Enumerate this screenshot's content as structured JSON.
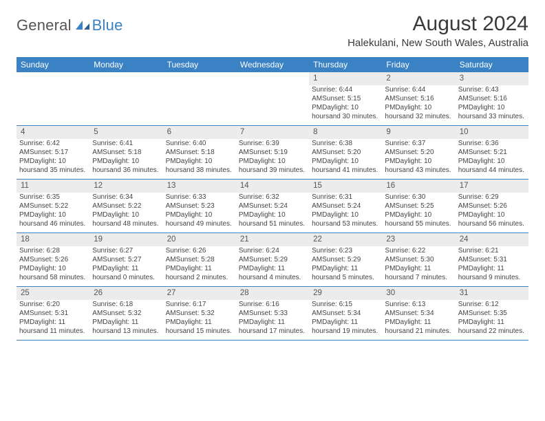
{
  "brand": {
    "name1": "General",
    "name2": "Blue"
  },
  "title": "August 2024",
  "subtitle": "Halekulani, New South Wales, Australia",
  "header_bg": "#3b82c4",
  "header_fg": "#ffffff",
  "daynum_bg": "#ececec",
  "row_border": "#3b82c4",
  "weekdays": [
    "Sunday",
    "Monday",
    "Tuesday",
    "Wednesday",
    "Thursday",
    "Friday",
    "Saturday"
  ],
  "weeks": [
    [
      null,
      null,
      null,
      null,
      {
        "n": "1",
        "sr": "Sunrise: 6:44 AM",
        "ss": "Sunset: 5:15 PM",
        "d1": "Daylight: 10 hours",
        "d2": "and 30 minutes."
      },
      {
        "n": "2",
        "sr": "Sunrise: 6:44 AM",
        "ss": "Sunset: 5:16 PM",
        "d1": "Daylight: 10 hours",
        "d2": "and 32 minutes."
      },
      {
        "n": "3",
        "sr": "Sunrise: 6:43 AM",
        "ss": "Sunset: 5:16 PM",
        "d1": "Daylight: 10 hours",
        "d2": "and 33 minutes."
      }
    ],
    [
      {
        "n": "4",
        "sr": "Sunrise: 6:42 AM",
        "ss": "Sunset: 5:17 PM",
        "d1": "Daylight: 10 hours",
        "d2": "and 35 minutes."
      },
      {
        "n": "5",
        "sr": "Sunrise: 6:41 AM",
        "ss": "Sunset: 5:18 PM",
        "d1": "Daylight: 10 hours",
        "d2": "and 36 minutes."
      },
      {
        "n": "6",
        "sr": "Sunrise: 6:40 AM",
        "ss": "Sunset: 5:18 PM",
        "d1": "Daylight: 10 hours",
        "d2": "and 38 minutes."
      },
      {
        "n": "7",
        "sr": "Sunrise: 6:39 AM",
        "ss": "Sunset: 5:19 PM",
        "d1": "Daylight: 10 hours",
        "d2": "and 39 minutes."
      },
      {
        "n": "8",
        "sr": "Sunrise: 6:38 AM",
        "ss": "Sunset: 5:20 PM",
        "d1": "Daylight: 10 hours",
        "d2": "and 41 minutes."
      },
      {
        "n": "9",
        "sr": "Sunrise: 6:37 AM",
        "ss": "Sunset: 5:20 PM",
        "d1": "Daylight: 10 hours",
        "d2": "and 43 minutes."
      },
      {
        "n": "10",
        "sr": "Sunrise: 6:36 AM",
        "ss": "Sunset: 5:21 PM",
        "d1": "Daylight: 10 hours",
        "d2": "and 44 minutes."
      }
    ],
    [
      {
        "n": "11",
        "sr": "Sunrise: 6:35 AM",
        "ss": "Sunset: 5:22 PM",
        "d1": "Daylight: 10 hours",
        "d2": "and 46 minutes."
      },
      {
        "n": "12",
        "sr": "Sunrise: 6:34 AM",
        "ss": "Sunset: 5:22 PM",
        "d1": "Daylight: 10 hours",
        "d2": "and 48 minutes."
      },
      {
        "n": "13",
        "sr": "Sunrise: 6:33 AM",
        "ss": "Sunset: 5:23 PM",
        "d1": "Daylight: 10 hours",
        "d2": "and 49 minutes."
      },
      {
        "n": "14",
        "sr": "Sunrise: 6:32 AM",
        "ss": "Sunset: 5:24 PM",
        "d1": "Daylight: 10 hours",
        "d2": "and 51 minutes."
      },
      {
        "n": "15",
        "sr": "Sunrise: 6:31 AM",
        "ss": "Sunset: 5:24 PM",
        "d1": "Daylight: 10 hours",
        "d2": "and 53 minutes."
      },
      {
        "n": "16",
        "sr": "Sunrise: 6:30 AM",
        "ss": "Sunset: 5:25 PM",
        "d1": "Daylight: 10 hours",
        "d2": "and 55 minutes."
      },
      {
        "n": "17",
        "sr": "Sunrise: 6:29 AM",
        "ss": "Sunset: 5:26 PM",
        "d1": "Daylight: 10 hours",
        "d2": "and 56 minutes."
      }
    ],
    [
      {
        "n": "18",
        "sr": "Sunrise: 6:28 AM",
        "ss": "Sunset: 5:26 PM",
        "d1": "Daylight: 10 hours",
        "d2": "and 58 minutes."
      },
      {
        "n": "19",
        "sr": "Sunrise: 6:27 AM",
        "ss": "Sunset: 5:27 PM",
        "d1": "Daylight: 11 hours",
        "d2": "and 0 minutes."
      },
      {
        "n": "20",
        "sr": "Sunrise: 6:26 AM",
        "ss": "Sunset: 5:28 PM",
        "d1": "Daylight: 11 hours",
        "d2": "and 2 minutes."
      },
      {
        "n": "21",
        "sr": "Sunrise: 6:24 AM",
        "ss": "Sunset: 5:29 PM",
        "d1": "Daylight: 11 hours",
        "d2": "and 4 minutes."
      },
      {
        "n": "22",
        "sr": "Sunrise: 6:23 AM",
        "ss": "Sunset: 5:29 PM",
        "d1": "Daylight: 11 hours",
        "d2": "and 5 minutes."
      },
      {
        "n": "23",
        "sr": "Sunrise: 6:22 AM",
        "ss": "Sunset: 5:30 PM",
        "d1": "Daylight: 11 hours",
        "d2": "and 7 minutes."
      },
      {
        "n": "24",
        "sr": "Sunrise: 6:21 AM",
        "ss": "Sunset: 5:31 PM",
        "d1": "Daylight: 11 hours",
        "d2": "and 9 minutes."
      }
    ],
    [
      {
        "n": "25",
        "sr": "Sunrise: 6:20 AM",
        "ss": "Sunset: 5:31 PM",
        "d1": "Daylight: 11 hours",
        "d2": "and 11 minutes."
      },
      {
        "n": "26",
        "sr": "Sunrise: 6:18 AM",
        "ss": "Sunset: 5:32 PM",
        "d1": "Daylight: 11 hours",
        "d2": "and 13 minutes."
      },
      {
        "n": "27",
        "sr": "Sunrise: 6:17 AM",
        "ss": "Sunset: 5:32 PM",
        "d1": "Daylight: 11 hours",
        "d2": "and 15 minutes."
      },
      {
        "n": "28",
        "sr": "Sunrise: 6:16 AM",
        "ss": "Sunset: 5:33 PM",
        "d1": "Daylight: 11 hours",
        "d2": "and 17 minutes."
      },
      {
        "n": "29",
        "sr": "Sunrise: 6:15 AM",
        "ss": "Sunset: 5:34 PM",
        "d1": "Daylight: 11 hours",
        "d2": "and 19 minutes."
      },
      {
        "n": "30",
        "sr": "Sunrise: 6:13 AM",
        "ss": "Sunset: 5:34 PM",
        "d1": "Daylight: 11 hours",
        "d2": "and 21 minutes."
      },
      {
        "n": "31",
        "sr": "Sunrise: 6:12 AM",
        "ss": "Sunset: 5:35 PM",
        "d1": "Daylight: 11 hours",
        "d2": "and 22 minutes."
      }
    ]
  ]
}
